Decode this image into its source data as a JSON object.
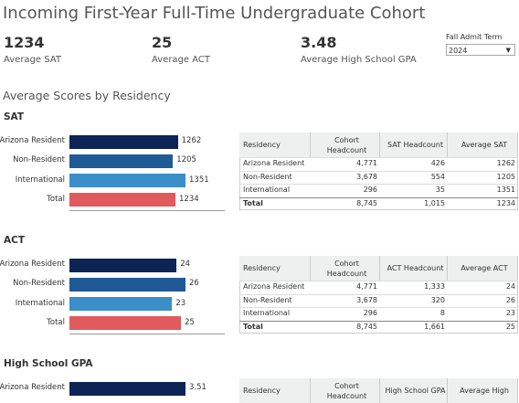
{
  "title": "Incoming First-Year Full-Time Undergraduate Cohort",
  "kpis": [
    {
      "value": 1234,
      "label": "Average SAT"
    },
    {
      "value": 25,
      "label": "Average ACT"
    },
    {
      "value": 3.48,
      "label": "Average High School GPA"
    }
  ],
  "filter": {
    "label": "Fall Admit Term",
    "value": "2024"
  },
  "section_title": "Average Scores by Residency",
  "chart_data": [
    {
      "type": "bar",
      "orientation": "horizontal",
      "title": "SAT",
      "categories": [
        "Arizona Resident",
        "Non-Resident",
        "International",
        "Total"
      ],
      "values": [
        1262,
        1205,
        1351,
        1234
      ],
      "colors": [
        "#0c2456",
        "#1f5a96",
        "#3a8fc9",
        "#e05a5e"
      ]
    },
    {
      "type": "bar",
      "orientation": "horizontal",
      "title": "ACT",
      "categories": [
        "Arizona Resident",
        "Non-Resident",
        "International",
        "Total"
      ],
      "values": [
        24,
        26,
        23,
        25
      ],
      "colors": [
        "#0c2456",
        "#1f5a96",
        "#3a8fc9",
        "#e05a5e"
      ]
    },
    {
      "type": "bar",
      "orientation": "horizontal",
      "title": "High School GPA",
      "categories": [
        "Arizona Resident"
      ],
      "values": [
        3.51
      ],
      "colors": [
        "#0c2456"
      ]
    }
  ],
  "tables": [
    {
      "columns": [
        "Residency",
        "Cohort Headcount",
        "SAT Headcount",
        "Average SAT"
      ],
      "rows": [
        [
          "Arizona Resident",
          "4,771",
          "426",
          "1262"
        ],
        [
          "Non-Resident",
          "3,678",
          "554",
          "1205"
        ],
        [
          "International",
          "296",
          "35",
          "1351"
        ],
        [
          "Total",
          "8,745",
          "1,015",
          "1234"
        ]
      ]
    },
    {
      "columns": [
        "Residency",
        "Cohort Headcount",
        "ACT Headcount",
        "Average ACT"
      ],
      "rows": [
        [
          "Arizona Resident",
          "4,771",
          "1,333",
          "24"
        ],
        [
          "Non-Resident",
          "3,678",
          "320",
          "26"
        ],
        [
          "International",
          "296",
          "8",
          "23"
        ],
        [
          "Total",
          "8,745",
          "1,661",
          "25"
        ]
      ]
    },
    {
      "columns": [
        "Residency",
        "Cohort Headcount",
        "High School GPA",
        "Average High"
      ],
      "rows": []
    }
  ]
}
